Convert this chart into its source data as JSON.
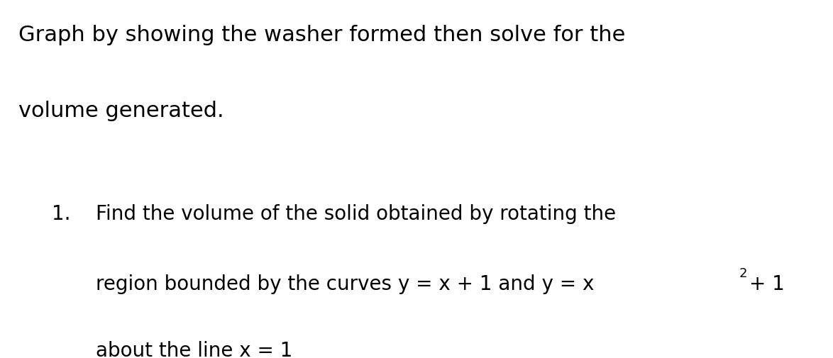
{
  "background_color": "#ffffff",
  "title_line1": "Graph by showing the washer formed then solve for the",
  "title_line2": "volume generated.",
  "item_number": "1.",
  "line1": "Find the volume of the solid obtained by rotating the",
  "line2_part1": "region bounded by the curves y = x + 1 and y = x",
  "line2_superscript": "2",
  "line2_part2": "+ 1",
  "line3": "about the line x = 1",
  "font_size_title": 22,
  "font_size_body": 20,
  "font_size_sup": 13,
  "text_color": "#000000",
  "background_color_hex": "#ffffff"
}
